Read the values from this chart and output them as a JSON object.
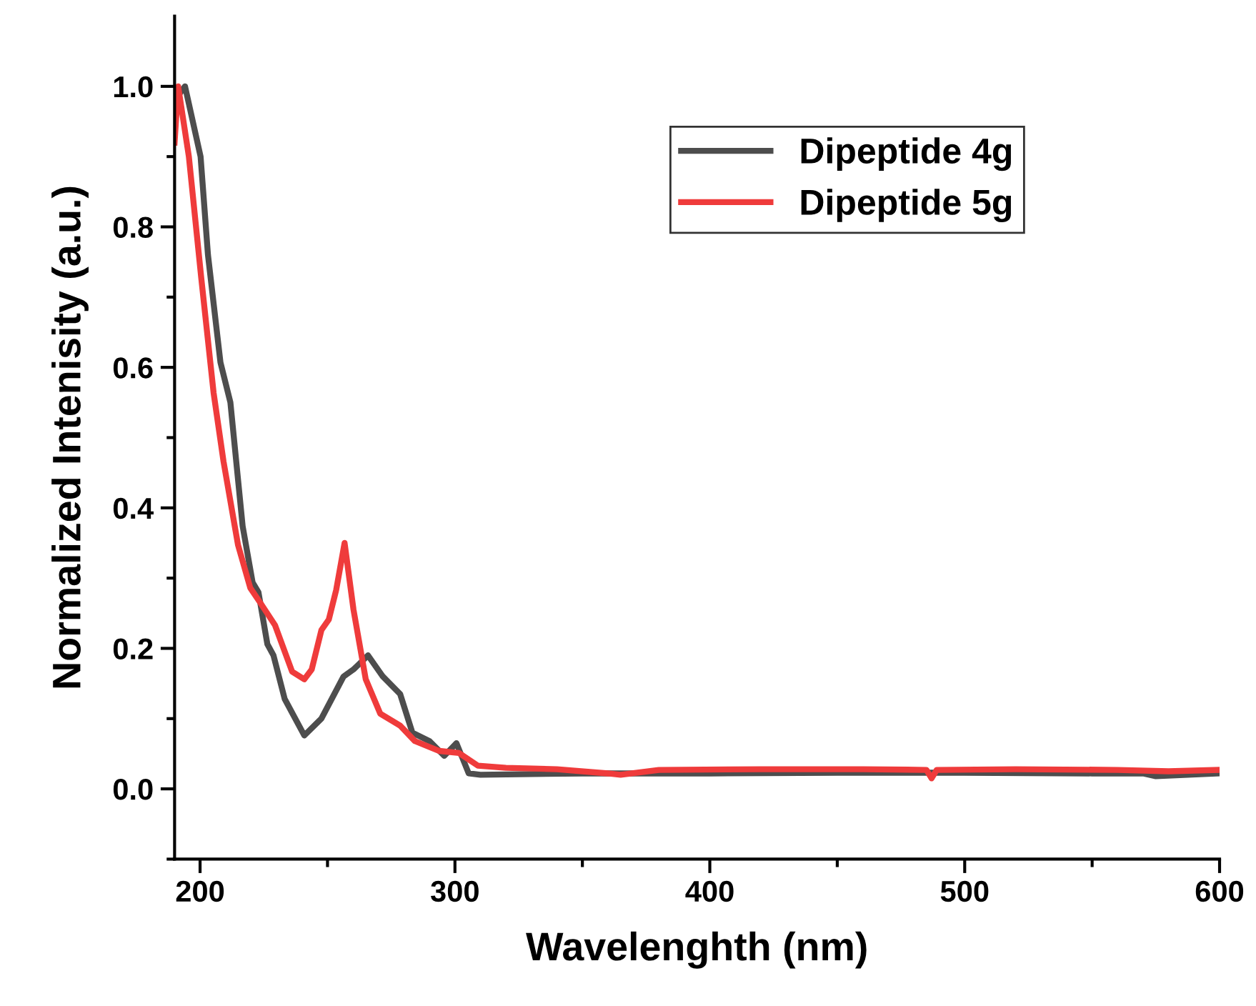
{
  "chart_data": {
    "type": "line",
    "xlabel": "Wavelenghth (nm)",
    "ylabel": "Normalized Intenisity (a.u.)",
    "xlim": [
      190,
      600
    ],
    "ylim": [
      -0.1,
      1.1
    ],
    "xticks": [
      200,
      {
        "value": 250,
        "label": null
      },
      300,
      {
        "value": 350,
        "label": null
      },
      400,
      {
        "value": 450,
        "label": null
      },
      500,
      {
        "value": 550,
        "label": null
      },
      600
    ],
    "yticks": [
      {
        "value": -0.1,
        "label": null
      },
      {
        "value": 0,
        "label": "0.0"
      },
      {
        "value": 0.1,
        "label": null
      },
      {
        "value": 0.2,
        "label": "0.2"
      },
      {
        "value": 0.3,
        "label": null
      },
      {
        "value": 0.4,
        "label": "0.4"
      },
      {
        "value": 0.5,
        "label": null
      },
      {
        "value": 0.6,
        "label": "0.6"
      },
      {
        "value": 0.7,
        "label": null
      },
      {
        "value": 0.8,
        "label": "0.8"
      },
      {
        "value": 0.9,
        "label": null
      },
      {
        "value": 1.0,
        "label": "1.0"
      }
    ],
    "legend": "top right",
    "grid": false,
    "marker": "none",
    "line_style": "solid",
    "series": [
      {
        "name": "Dipeptide 4g",
        "color": "#4d4d4d",
        "x": [
          190,
          194.1,
          200.2,
          203.1,
          208,
          211.9,
          216.7,
          220.6,
          222.9,
          226.4,
          228.8,
          233.2,
          240.9,
          247.6,
          256.3,
          260.2,
          265.9,
          271.7,
          278.5,
          283.3,
          290,
          295.8,
          300.6,
          305.4,
          310,
          350,
          400,
          450,
          500,
          550,
          570,
          575,
          600
        ],
        "values": [
          0.98,
          1.0,
          0.9,
          0.76,
          0.607,
          0.55,
          0.374,
          0.294,
          0.28,
          0.206,
          0.19,
          0.128,
          0.076,
          0.1,
          0.16,
          0.17,
          0.19,
          0.16,
          0.135,
          0.08,
          0.068,
          0.047,
          0.065,
          0.022,
          0.02,
          0.022,
          0.022,
          0.023,
          0.023,
          0.022,
          0.022,
          0.018,
          0.022
        ]
      },
      {
        "name": "Dipeptide 5g",
        "color": "#ef3b3b",
        "x": [
          190,
          191.4,
          195.6,
          200.5,
          205.3,
          209.2,
          214.9,
          219.7,
          223.6,
          229.4,
          236.1,
          240.9,
          243.8,
          247.6,
          250.5,
          253.4,
          256.7,
          260.2,
          265,
          270.7,
          278.5,
          284.3,
          293.9,
          301.6,
          309,
          320,
          340,
          360,
          365,
          380,
          420,
          460,
          485,
          487,
          489,
          520,
          560,
          580,
          600
        ],
        "values": [
          0.92,
          1.0,
          0.9,
          0.726,
          0.564,
          0.466,
          0.347,
          0.286,
          0.265,
          0.233,
          0.167,
          0.156,
          0.17,
          0.226,
          0.241,
          0.283,
          0.35,
          0.255,
          0.156,
          0.107,
          0.09,
          0.068,
          0.054,
          0.051,
          0.033,
          0.03,
          0.028,
          0.022,
          0.02,
          0.027,
          0.028,
          0.028,
          0.027,
          0.015,
          0.027,
          0.028,
          0.027,
          0.025,
          0.027
        ]
      }
    ]
  }
}
